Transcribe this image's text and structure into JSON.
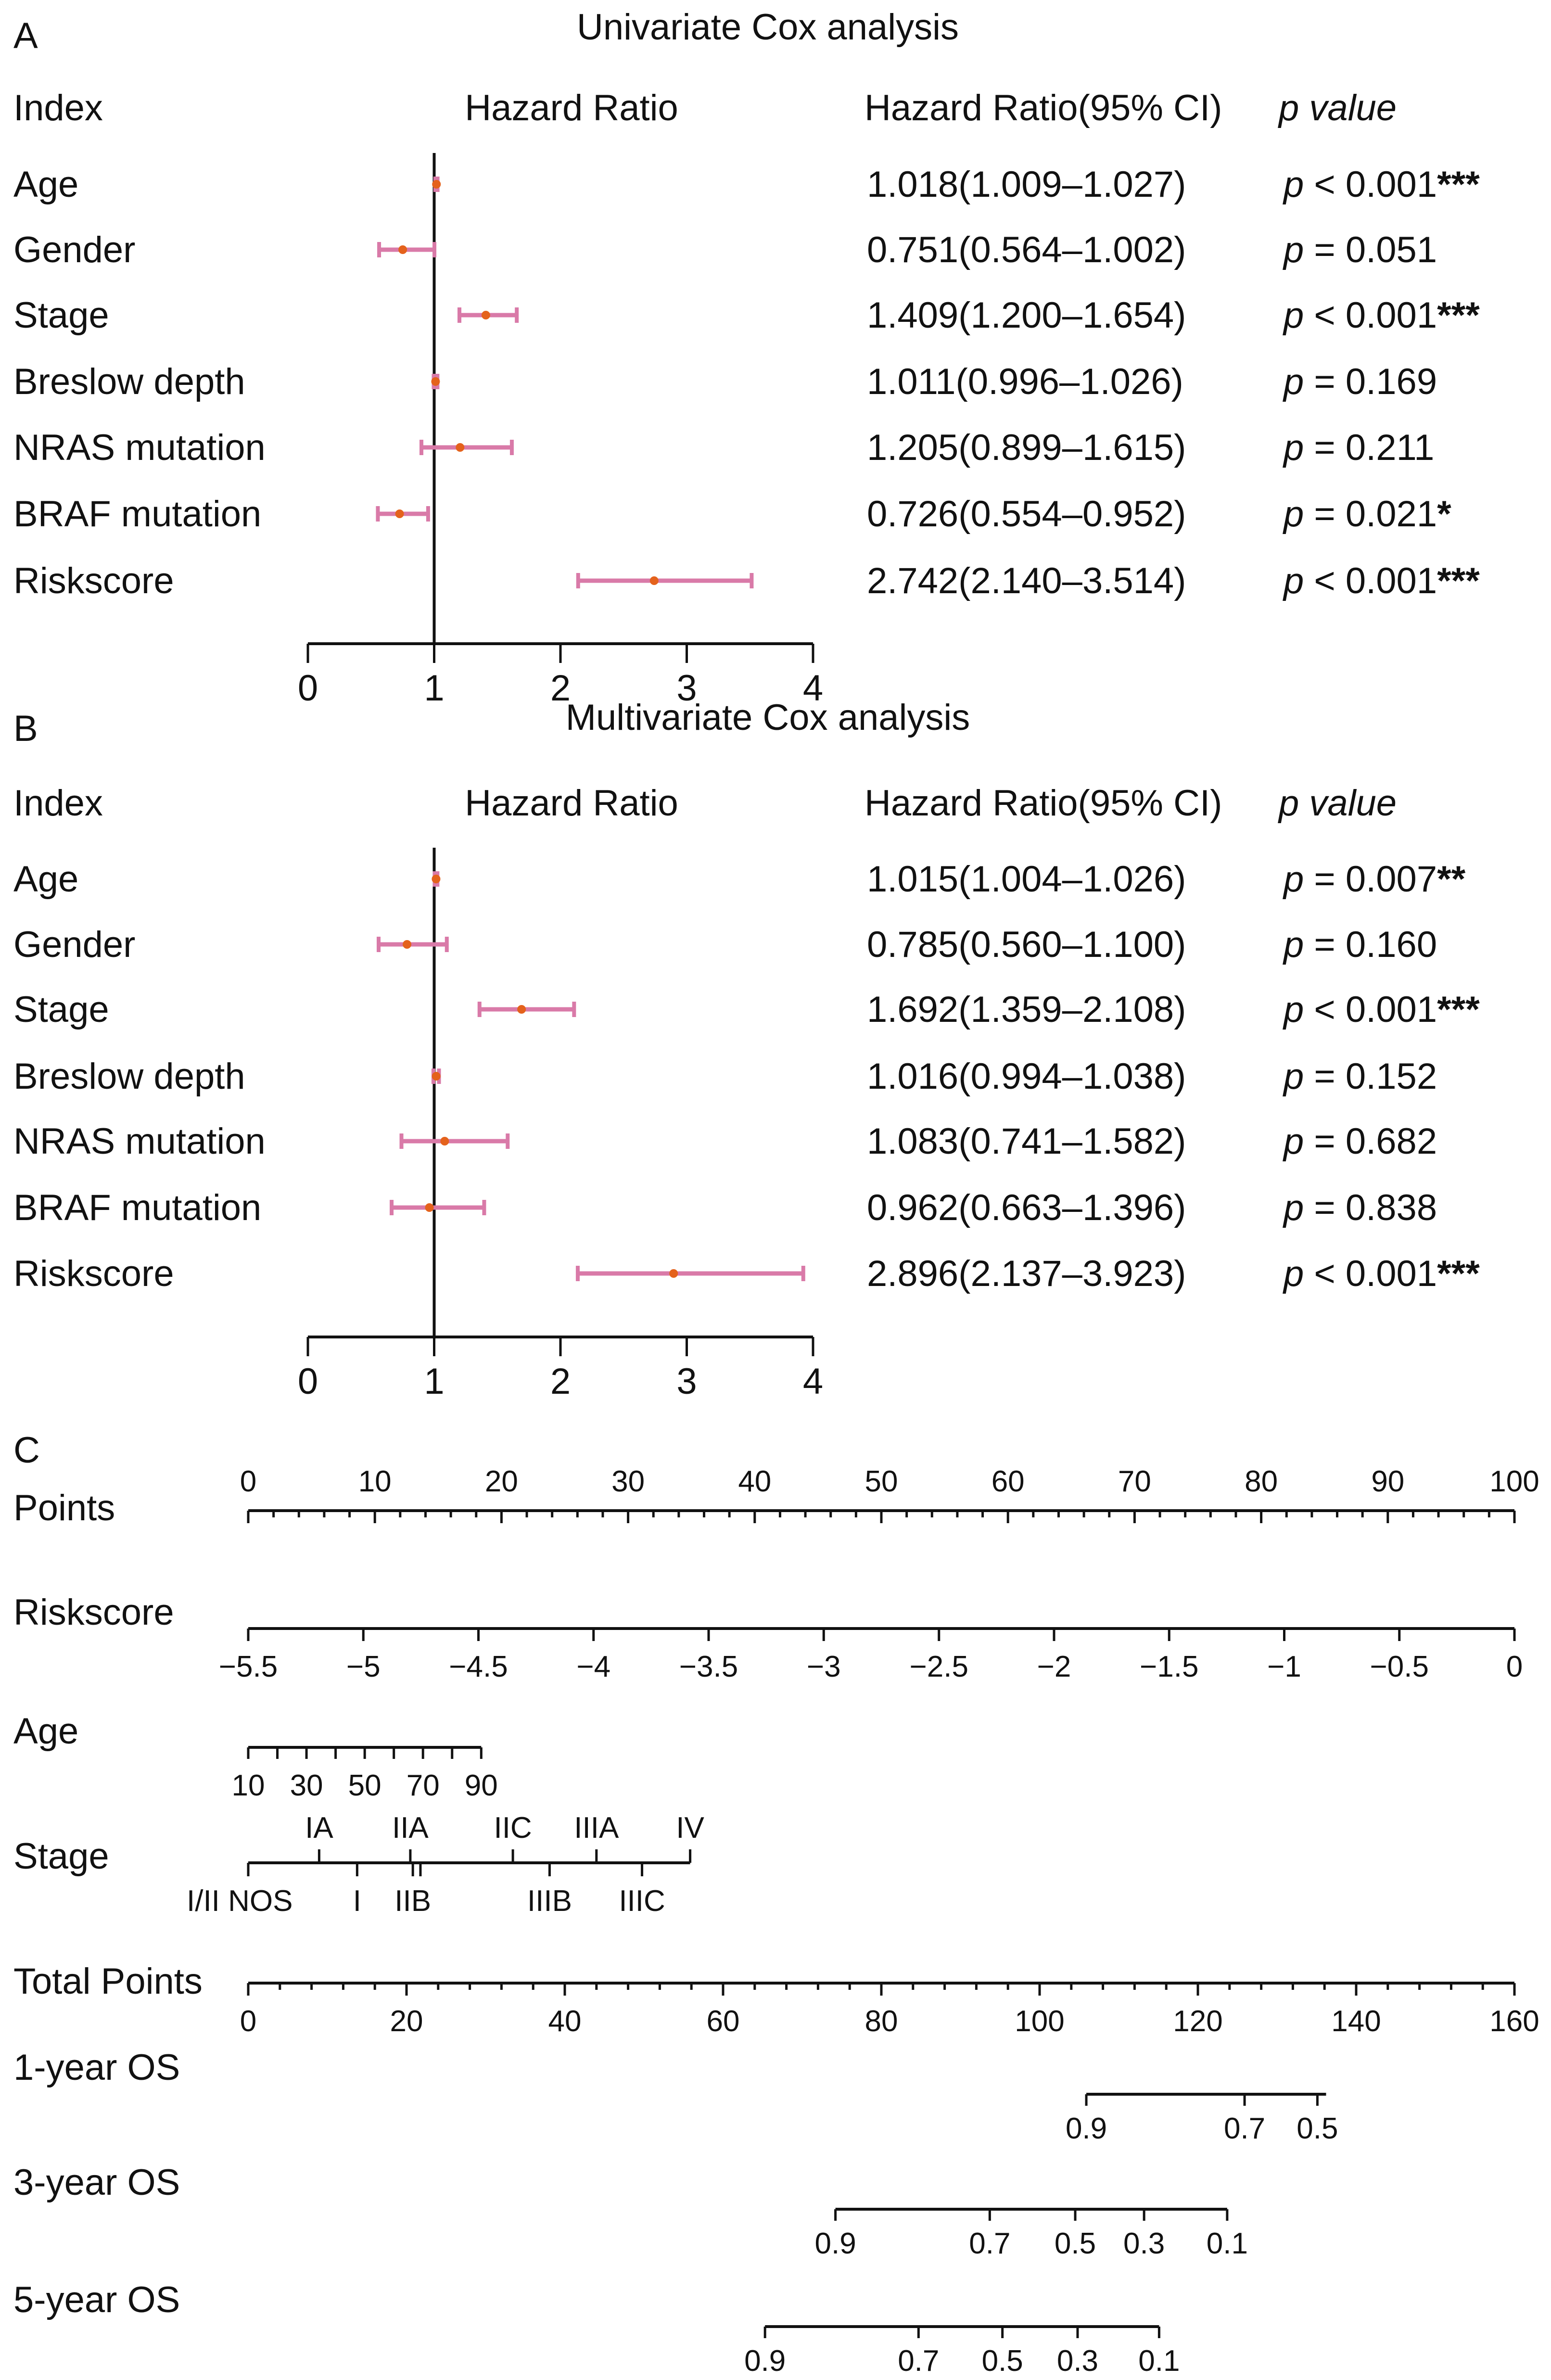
{
  "chart_data": [
    {
      "type": "forest",
      "panel_label": "A",
      "title": "Univariate Cox analysis",
      "headers": {
        "index": "Index",
        "plot": "Hazard Ratio",
        "hr_ci": "Hazard Ratio(95% CI)",
        "p": "p value"
      },
      "xlim": [
        0,
        4
      ],
      "xticks": [
        "0",
        "1",
        "2",
        "3",
        "4"
      ],
      "reference_line": 1,
      "rows": [
        {
          "label": "Age",
          "hr": 1.018,
          "lo": 1.009,
          "hi": 1.027,
          "hr_text": "1.018(1.009–1.027)",
          "p_prefix": "p",
          "p_text": " < 0.001",
          "stars": "***"
        },
        {
          "label": "Gender",
          "hr": 0.751,
          "lo": 0.564,
          "hi": 1.002,
          "hr_text": "0.751(0.564–1.002)",
          "p_prefix": "p",
          "p_text": " = 0.051",
          "stars": ""
        },
        {
          "label": "Stage",
          "hr": 1.409,
          "lo": 1.2,
          "hi": 1.654,
          "hr_text": "1.409(1.200–1.654)",
          "p_prefix": "p",
          "p_text": " < 0.001",
          "stars": "***"
        },
        {
          "label": "Breslow depth",
          "hr": 1.011,
          "lo": 0.996,
          "hi": 1.026,
          "hr_text": "1.011(0.996–1.026)",
          "p_prefix": "p",
          "p_text": " = 0.169",
          "stars": ""
        },
        {
          "label": "NRAS mutation",
          "hr": 1.205,
          "lo": 0.899,
          "hi": 1.615,
          "hr_text": "1.205(0.899–1.615)",
          "p_prefix": "p",
          "p_text": " = 0.211",
          "stars": ""
        },
        {
          "label": "BRAF mutation",
          "hr": 0.726,
          "lo": 0.554,
          "hi": 0.952,
          "hr_text": "0.726(0.554–0.952)",
          "p_prefix": "p",
          "p_text": " = 0.021",
          "stars": "*"
        },
        {
          "label": "Riskscore",
          "hr": 2.742,
          "lo": 2.14,
          "hi": 3.514,
          "hr_text": "2.742(2.140–3.514)",
          "p_prefix": "p",
          "p_text": " < 0.001",
          "stars": "***"
        }
      ]
    },
    {
      "type": "forest",
      "panel_label": "B",
      "title": "Multivariate Cox analysis",
      "headers": {
        "index": "Index",
        "plot": "Hazard Ratio",
        "hr_ci": "Hazard Ratio(95% CI)",
        "p": "p value"
      },
      "xlim": [
        0,
        4
      ],
      "xticks": [
        "0",
        "1",
        "2",
        "3",
        "4"
      ],
      "reference_line": 1,
      "rows": [
        {
          "label": "Age",
          "hr": 1.015,
          "lo": 1.004,
          "hi": 1.026,
          "hr_text": "1.015(1.004–1.026)",
          "p_prefix": "p",
          "p_text": " = 0.007",
          "stars": "**"
        },
        {
          "label": "Gender",
          "hr": 0.785,
          "lo": 0.56,
          "hi": 1.1,
          "hr_text": "0.785(0.560–1.100)",
          "p_prefix": "p",
          "p_text": " = 0.160",
          "stars": ""
        },
        {
          "label": "Stage",
          "hr": 1.692,
          "lo": 1.359,
          "hi": 2.108,
          "hr_text": "1.692(1.359–2.108)",
          "p_prefix": "p",
          "p_text": " < 0.001",
          "stars": "***"
        },
        {
          "label": "Breslow depth",
          "hr": 1.016,
          "lo": 0.994,
          "hi": 1.038,
          "hr_text": "1.016(0.994–1.038)",
          "p_prefix": "p",
          "p_text": " = 0.152",
          "stars": ""
        },
        {
          "label": "NRAS mutation",
          "hr": 1.083,
          "lo": 0.741,
          "hi": 1.582,
          "hr_text": "1.083(0.741–1.582)",
          "p_prefix": "p",
          "p_text": " = 0.682",
          "stars": ""
        },
        {
          "label": "BRAF mutation",
          "hr": 0.962,
          "lo": 0.663,
          "hi": 1.396,
          "hr_text": "0.962(0.663–1.396)",
          "p_prefix": "p",
          "p_text": " = 0.838",
          "stars": ""
        },
        {
          "label": "Riskscore",
          "hr": 2.896,
          "lo": 2.137,
          "hi": 3.923,
          "hr_text": "2.896(2.137–3.923)",
          "p_prefix": "p",
          "p_text": " < 0.001",
          "stars": "***"
        }
      ]
    },
    {
      "type": "nomogram",
      "panel_label": "C",
      "points_scale": [
        0,
        100
      ],
      "total_points_scale": [
        0,
        160
      ],
      "rows": [
        {
          "label": "Points",
          "kind": "points",
          "ticks": [
            0,
            10,
            20,
            30,
            40,
            50,
            60,
            70,
            80,
            90,
            100
          ],
          "labels": [
            "0",
            "10",
            "20",
            "30",
            "40",
            "50",
            "60",
            "70",
            "80",
            "90",
            "100"
          ],
          "minor_step": 2
        },
        {
          "label": "Riskscore",
          "kind": "points",
          "ticks": [
            0,
            9.09,
            18.18,
            27.27,
            36.36,
            45.45,
            54.55,
            63.64,
            72.73,
            81.82,
            90.91,
            100
          ],
          "labels": [
            "−5.5",
            "−5",
            "−4.5",
            "−4",
            "−3.5",
            "−3",
            "−2.5",
            "−2",
            "−1.5",
            "−1",
            "−0.5",
            "0"
          ]
        },
        {
          "label": "Age",
          "kind": "points",
          "ticks": [
            0,
            2.3,
            4.6,
            6.9,
            9.2,
            11.5,
            13.8,
            16.1,
            18.4
          ],
          "labels": [
            "10",
            "",
            "30",
            "",
            "50",
            "",
            "70",
            "",
            "90"
          ]
        },
        {
          "label": "Stage",
          "kind": "points",
          "above": [
            {
              "v": 5.6,
              "t": "IA"
            },
            {
              "v": 12.8,
              "t": "IIA"
            },
            {
              "v": 20.9,
              "t": "IIC"
            },
            {
              "v": 27.5,
              "t": "IIIA"
            },
            {
              "v": 34.9,
              "t": "IV"
            }
          ],
          "below": [
            {
              "v": 0,
              "t": "I/II NOS"
            },
            {
              "v": 8.6,
              "t": "I"
            },
            {
              "v": 13.0,
              "t": "IIB"
            },
            {
              "v": 23.8,
              "t": "IIIB"
            },
            {
              "v": 31.1,
              "t": "IIIC"
            }
          ],
          "extra_ticks": [
            13.6
          ]
        },
        {
          "label": "Total Points",
          "kind": "total",
          "ticks": [
            0,
            20,
            40,
            60,
            80,
            100,
            120,
            140,
            160
          ],
          "labels": [
            "0",
            "20",
            "40",
            "60",
            "80",
            "100",
            "120",
            "140",
            "160"
          ],
          "minor_step": 4
        },
        {
          "label": "1-year OS",
          "kind": "total",
          "range": [
            105.9,
            136.2
          ],
          "ticks": [
            105.9,
            125.9,
            135.1
          ],
          "labels": [
            "0.9",
            "0.7",
            "0.5"
          ]
        },
        {
          "label": "3-year OS",
          "kind": "total",
          "range": [
            74.2,
            123.7
          ],
          "ticks": [
            74.2,
            93.7,
            104.5,
            113.2,
            123.7
          ],
          "labels": [
            "0.9",
            "0.7",
            "0.5",
            "0.3",
            "0.1"
          ]
        },
        {
          "label": "5-year OS",
          "kind": "total",
          "range": [
            65.3,
            115.1
          ],
          "ticks": [
            65.3,
            84.7,
            95.3,
            104.8,
            115.1
          ],
          "labels": [
            "0.9",
            "0.7",
            "0.5",
            "0.3",
            "0.1"
          ]
        }
      ]
    }
  ]
}
